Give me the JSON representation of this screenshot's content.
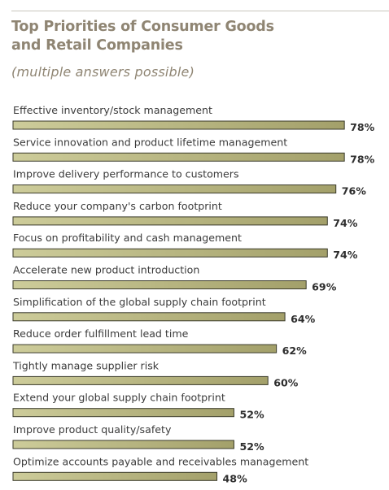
{
  "chart_data": {
    "type": "bar",
    "orientation": "horizontal",
    "title": "Top Priorities of Consumer Goods and Retail Companies",
    "subtitle": "(multiple answers possible)",
    "categories": [
      "Effective inventory/stock management",
      "Service innovation and product lifetime management",
      "Improve delivery performance to customers",
      "Reduce your company's carbon footprint",
      "Focus on profitability and cash management",
      "Accelerate new product introduction",
      "Simplification of the global supply chain footprint",
      "Reduce order fulfillment lead time",
      "Tightly manage supplier risk",
      "Extend your global supply chain footprint",
      "Improve product quality/safety",
      "Optimize accounts payable and receivables management"
    ],
    "values": [
      78,
      78,
      76,
      74,
      74,
      69,
      64,
      62,
      60,
      52,
      52,
      48
    ],
    "value_labels": [
      "78%",
      "78%",
      "76%",
      "74%",
      "74%",
      "69%",
      "64%",
      "62%",
      "60%",
      "52%",
      "52%",
      "48%"
    ],
    "unit": "%",
    "grid": false,
    "legend": "none",
    "colors": {
      "bar_light": "#cdcc9a",
      "bar_dark": "#a3a06a",
      "bar_border": "#3a3a2a",
      "title": "#8f8573"
    }
  }
}
